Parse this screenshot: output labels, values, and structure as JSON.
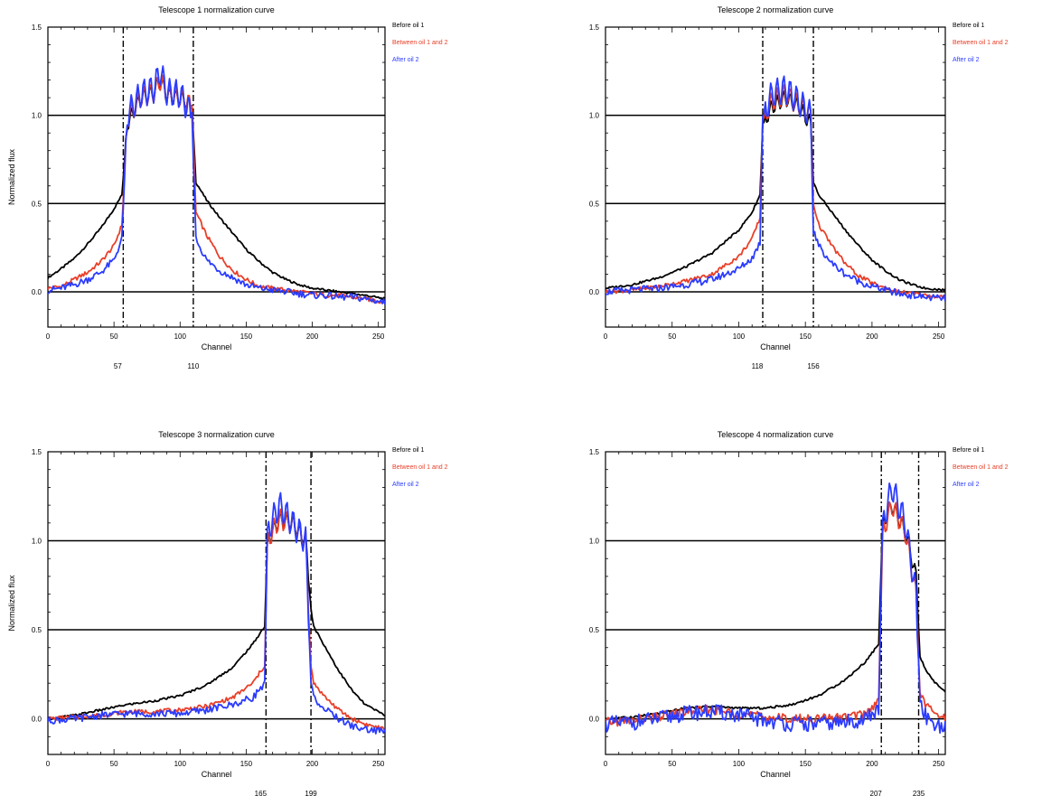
{
  "chart_data": [
    {
      "type": "line",
      "title": "Telescope 1 normalization curve",
      "xlabel": "Channel",
      "ylabel": "Normalized flux",
      "xlim": [
        0,
        255
      ],
      "ylim": [
        -0.2,
        1.5
      ],
      "xticks": [
        0,
        50,
        100,
        150,
        200,
        250
      ],
      "yticks": [
        0.0,
        0.5,
        1.0,
        1.5
      ],
      "hlines": [
        0.0,
        0.5,
        1.0
      ],
      "markers": [
        57,
        110
      ],
      "legend": [
        "Before oil 1",
        "Between oil 1 and 2",
        "After oil 2"
      ],
      "series": [
        {
          "name": "Before oil 1",
          "color": "#000000",
          "x": [
            0,
            10,
            20,
            30,
            40,
            50,
            56,
            60,
            70,
            80,
            85,
            90,
            100,
            109,
            112,
            120,
            130,
            140,
            150,
            160,
            170,
            180,
            190,
            200,
            210,
            220,
            230,
            240,
            255
          ],
          "y": [
            0.08,
            0.13,
            0.19,
            0.27,
            0.36,
            0.47,
            0.55,
            0.95,
            1.1,
            1.13,
            1.2,
            1.12,
            1.1,
            1.05,
            0.62,
            0.52,
            0.42,
            0.33,
            0.24,
            0.17,
            0.11,
            0.07,
            0.04,
            0.02,
            0.01,
            0.0,
            -0.01,
            -0.02,
            -0.04
          ]
        },
        {
          "name": "Between oil 1 and 2",
          "color": "#e8402a",
          "x": [
            0,
            10,
            20,
            30,
            40,
            50,
            56,
            60,
            70,
            80,
            85,
            90,
            100,
            109,
            112,
            120,
            130,
            140,
            150,
            160,
            170,
            180,
            190,
            200,
            210,
            220,
            230,
            240,
            255
          ],
          "y": [
            0.02,
            0.03,
            0.07,
            0.11,
            0.17,
            0.26,
            0.38,
            0.98,
            1.1,
            1.13,
            1.2,
            1.12,
            1.1,
            1.05,
            0.45,
            0.32,
            0.2,
            0.12,
            0.07,
            0.03,
            0.02,
            0.01,
            0.0,
            -0.01,
            -0.02,
            -0.02,
            -0.03,
            -0.04,
            -0.06
          ]
        },
        {
          "name": "After oil 2",
          "color": "#2b3cff",
          "x": [
            0,
            10,
            20,
            30,
            40,
            50,
            56,
            60,
            70,
            80,
            85,
            90,
            100,
            109,
            112,
            120,
            130,
            140,
            150,
            160,
            170,
            180,
            190,
            200,
            210,
            220,
            230,
            240,
            255
          ],
          "y": [
            0.01,
            0.02,
            0.04,
            0.07,
            0.11,
            0.18,
            0.3,
            1.0,
            1.12,
            1.15,
            1.25,
            1.13,
            1.12,
            1.0,
            0.3,
            0.18,
            0.12,
            0.08,
            0.04,
            0.02,
            0.01,
            0.0,
            -0.01,
            -0.02,
            -0.02,
            -0.03,
            -0.03,
            -0.04,
            -0.06
          ]
        }
      ]
    },
    {
      "type": "line",
      "title": "Telescope 2 normalization curve",
      "xlabel": "Channel",
      "ylabel": "",
      "xlim": [
        0,
        255
      ],
      "ylim": [
        -0.2,
        1.5
      ],
      "xticks": [
        0,
        50,
        100,
        150,
        200,
        250
      ],
      "yticks": [
        0.0,
        0.5,
        1.0,
        1.5
      ],
      "hlines": [
        0.0,
        0.5,
        1.0
      ],
      "markers": [
        118,
        156
      ],
      "legend": [
        "Before oil 1",
        "Between oil 1 and 2",
        "After oil 2"
      ],
      "series": [
        {
          "name": "Before oil 1",
          "color": "#000000",
          "x": [
            0,
            20,
            40,
            60,
            80,
            100,
            110,
            116,
            118,
            125,
            135,
            145,
            154,
            156,
            160,
            170,
            180,
            190,
            200,
            210,
            220,
            230,
            240,
            255
          ],
          "y": [
            0.02,
            0.04,
            0.08,
            0.14,
            0.22,
            0.35,
            0.45,
            0.55,
            0.95,
            1.05,
            1.1,
            1.05,
            0.95,
            0.62,
            0.55,
            0.45,
            0.35,
            0.26,
            0.18,
            0.12,
            0.07,
            0.04,
            0.02,
            0.01
          ]
        },
        {
          "name": "Between oil 1 and 2",
          "color": "#e8402a",
          "x": [
            0,
            20,
            40,
            60,
            80,
            100,
            110,
            116,
            118,
            125,
            135,
            145,
            154,
            156,
            160,
            170,
            180,
            190,
            200,
            210,
            220,
            230,
            240,
            255
          ],
          "y": [
            0.0,
            0.01,
            0.03,
            0.06,
            0.1,
            0.2,
            0.3,
            0.42,
            0.98,
            1.08,
            1.12,
            1.06,
            1.0,
            0.5,
            0.38,
            0.26,
            0.16,
            0.09,
            0.05,
            0.02,
            0.0,
            -0.01,
            -0.02,
            -0.03
          ]
        },
        {
          "name": "After oil 2",
          "color": "#2b3cff",
          "x": [
            0,
            20,
            40,
            60,
            80,
            100,
            110,
            116,
            118,
            125,
            135,
            145,
            154,
            156,
            160,
            170,
            180,
            190,
            200,
            210,
            220,
            230,
            240,
            255
          ],
          "y": [
            0.0,
            0.01,
            0.02,
            0.04,
            0.07,
            0.13,
            0.19,
            0.28,
            1.0,
            1.12,
            1.15,
            1.08,
            1.0,
            0.35,
            0.26,
            0.16,
            0.1,
            0.06,
            0.03,
            0.01,
            -0.01,
            -0.02,
            -0.03,
            -0.04
          ]
        }
      ]
    },
    {
      "type": "line",
      "title": "Telescope 3 normalization curve",
      "xlabel": "Channel",
      "ylabel": "Normalized flux",
      "xlim": [
        0,
        255
      ],
      "ylim": [
        -0.2,
        1.5
      ],
      "xticks": [
        0,
        50,
        100,
        150,
        200,
        250
      ],
      "yticks": [
        0.0,
        0.5,
        1.0,
        1.5
      ],
      "hlines": [
        0.0,
        0.5,
        1.0
      ],
      "markers": [
        165,
        199
      ],
      "legend": [
        "Before oil 1",
        "Between oil 1 and 2",
        "After oil 2"
      ],
      "series": [
        {
          "name": "Before oil 1",
          "color": "#000000",
          "x": [
            0,
            20,
            40,
            60,
            80,
            100,
            120,
            140,
            155,
            164,
            166,
            175,
            185,
            195,
            199,
            201,
            210,
            220,
            230,
            240,
            255
          ],
          "y": [
            0.0,
            0.02,
            0.05,
            0.08,
            0.1,
            0.13,
            0.19,
            0.29,
            0.42,
            0.52,
            1.0,
            1.12,
            1.1,
            1.0,
            0.62,
            0.52,
            0.4,
            0.27,
            0.16,
            0.08,
            0.02
          ]
        },
        {
          "name": "Between oil 1 and 2",
          "color": "#e8402a",
          "x": [
            0,
            20,
            40,
            60,
            80,
            100,
            120,
            140,
            155,
            164,
            166,
            175,
            185,
            195,
            199,
            201,
            210,
            220,
            230,
            240,
            255
          ],
          "y": [
            0.0,
            0.01,
            0.02,
            0.04,
            0.04,
            0.05,
            0.07,
            0.12,
            0.2,
            0.3,
            1.0,
            1.12,
            1.1,
            1.0,
            0.3,
            0.2,
            0.12,
            0.05,
            0.0,
            -0.03,
            -0.06
          ]
        },
        {
          "name": "After oil 2",
          "color": "#2b3cff",
          "x": [
            0,
            20,
            40,
            60,
            80,
            100,
            120,
            140,
            155,
            164,
            166,
            175,
            185,
            195,
            199,
            201,
            210,
            220,
            230,
            240,
            255
          ],
          "y": [
            -0.01,
            0.0,
            0.02,
            0.03,
            0.03,
            0.03,
            0.05,
            0.08,
            0.12,
            0.2,
            1.05,
            1.2,
            1.1,
            1.0,
            0.22,
            0.12,
            0.05,
            0.0,
            -0.04,
            -0.06,
            -0.07
          ]
        }
      ]
    },
    {
      "type": "line",
      "title": "Telescope 4 normalization curve",
      "xlabel": "Channel",
      "ylabel": "",
      "xlim": [
        0,
        255
      ],
      "ylim": [
        -0.2,
        1.5
      ],
      "xticks": [
        0,
        50,
        100,
        150,
        200,
        250
      ],
      "yticks": [
        0.0,
        0.5,
        1.0,
        1.5
      ],
      "hlines": [
        0.0,
        0.5,
        1.0
      ],
      "markers": [
        207,
        235
      ],
      "legend": [
        "Before oil 1",
        "Between oil 1 and 2",
        "After oil 2"
      ],
      "series": [
        {
          "name": "Before oil 1",
          "color": "#000000",
          "x": [
            0,
            20,
            40,
            60,
            80,
            100,
            120,
            140,
            160,
            180,
            195,
            205,
            208,
            215,
            225,
            233,
            236,
            240,
            245,
            255
          ],
          "y": [
            0.0,
            0.01,
            0.03,
            0.06,
            0.07,
            0.06,
            0.06,
            0.08,
            0.13,
            0.22,
            0.32,
            0.42,
            1.1,
            1.2,
            1.05,
            0.8,
            0.35,
            0.28,
            0.22,
            0.15
          ]
        },
        {
          "name": "Between oil 1 and 2",
          "color": "#e8402a",
          "x": [
            0,
            20,
            40,
            60,
            80,
            100,
            120,
            140,
            160,
            180,
            195,
            205,
            208,
            215,
            225,
            233,
            236,
            240,
            245,
            255
          ],
          "y": [
            -0.02,
            -0.01,
            0.01,
            0.04,
            0.05,
            0.03,
            0.01,
            0.0,
            0.0,
            0.01,
            0.03,
            0.1,
            1.05,
            1.2,
            1.05,
            0.7,
            0.15,
            0.08,
            0.04,
            0.0
          ]
        },
        {
          "name": "After oil 2",
          "color": "#2b3cff",
          "x": [
            0,
            20,
            40,
            60,
            80,
            100,
            120,
            140,
            160,
            180,
            195,
            205,
            208,
            215,
            225,
            233,
            236,
            240,
            245,
            255
          ],
          "y": [
            -0.03,
            -0.02,
            0.0,
            0.03,
            0.04,
            0.02,
            -0.01,
            -0.03,
            -0.03,
            -0.02,
            0.0,
            0.05,
            1.1,
            1.3,
            1.1,
            0.7,
            0.1,
            0.02,
            -0.02,
            -0.05
          ]
        }
      ]
    }
  ]
}
